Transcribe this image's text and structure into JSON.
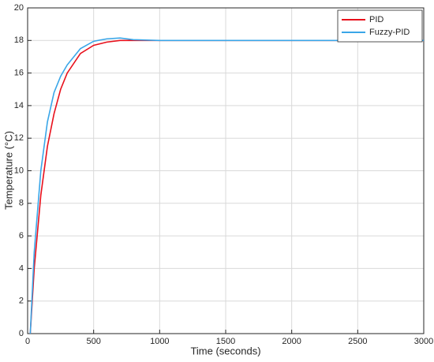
{
  "chart_data": {
    "type": "line",
    "x_label": "Time (seconds)",
    "y_label": "Temperature (°C)",
    "x": [
      20,
      50,
      100,
      150,
      200,
      250,
      300,
      400,
      500,
      600,
      700,
      800,
      1000,
      1500,
      2000,
      2500,
      3000
    ],
    "series": [
      {
        "name": "PID",
        "color": "#e8101c",
        "values": [
          0,
          4,
          8.5,
          11.5,
          13.5,
          15,
          16,
          17.2,
          17.7,
          17.9,
          18,
          18,
          18,
          18,
          18,
          18,
          18
        ]
      },
      {
        "name": "Fuzzy-PID",
        "color": "#3aa6e8",
        "values": [
          0,
          5,
          10,
          13,
          14.8,
          15.8,
          16.5,
          17.5,
          17.95,
          18.1,
          18.15,
          18.05,
          18,
          18,
          18,
          18,
          18
        ]
      }
    ],
    "xlim": [
      0,
      3000
    ],
    "xticks": [
      0,
      500,
      1000,
      1500,
      2000,
      2500,
      3000
    ],
    "ylim": [
      0,
      20
    ],
    "yticks": [
      0,
      2,
      4,
      6,
      8,
      10,
      12,
      14,
      16,
      18,
      20
    ],
    "grid": true,
    "legend": "northeast"
  }
}
